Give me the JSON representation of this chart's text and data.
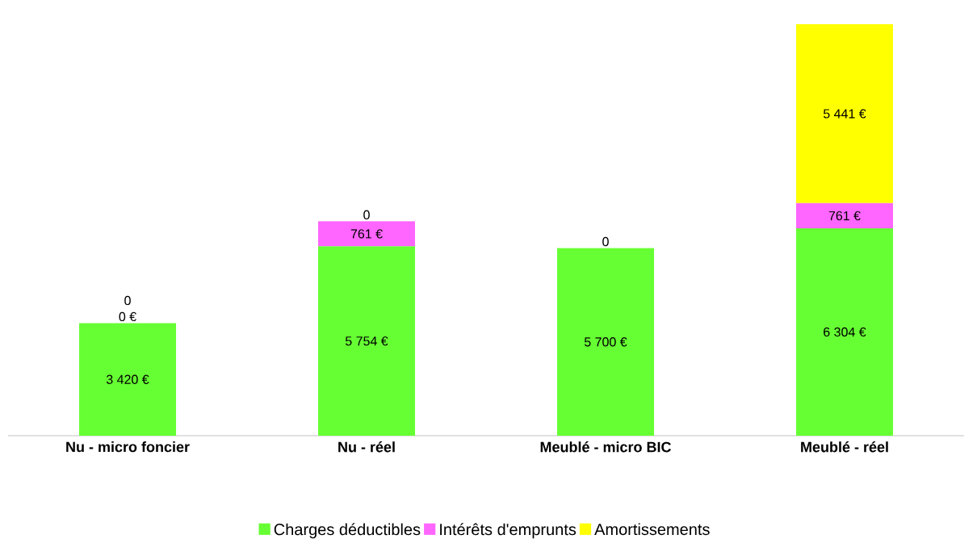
{
  "chart_data": {
    "type": "bar",
    "stacked": true,
    "categories": [
      "Nu - micro foncier",
      "Nu - réel",
      "Meublé - micro BIC",
      "Meublé - réel"
    ],
    "series": [
      {
        "name": "Charges déductibles",
        "color": "#66ff33",
        "values": [
          3420,
          5754,
          5700,
          6304
        ],
        "value_labels": [
          "3 420 €",
          "5 754 €",
          "5 700 €",
          "6 304 €"
        ]
      },
      {
        "name": "Intérêts d'emprunts",
        "color": "#ff66ff",
        "values": [
          0,
          761,
          0,
          761
        ],
        "value_labels": [
          "0 €",
          "761 €",
          "0",
          "761 €"
        ]
      },
      {
        "name": "Amortissements",
        "color": "#ffff00",
        "values": [
          0,
          0,
          0,
          5441
        ],
        "value_labels": [
          "0",
          "0",
          null,
          "5 441 €"
        ]
      }
    ],
    "legend": "bottom"
  }
}
